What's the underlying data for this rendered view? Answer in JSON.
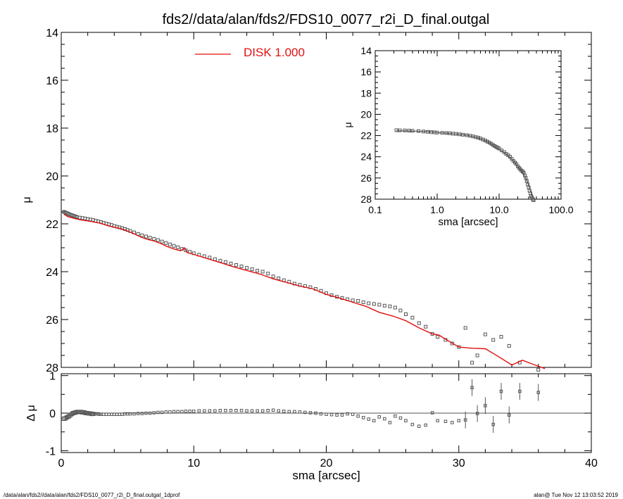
{
  "title": "fds2//data/alan/fds2/FDS10_0077_r2i_D_final.outgal",
  "footer_left": "/data/alan/fds2//data/alan/fds2/FDS10_0077_r2i_D_final.outgal_1dprof",
  "footer_right": "alan@  Tue Nov 12 13:03:52 2019",
  "colors": {
    "model": "#e01010",
    "data": "#555555",
    "axis": "#000000"
  },
  "chart_data": [
    {
      "id": "main",
      "type": "scatter",
      "xlabel": "",
      "ylabel": "μ",
      "xlim": [
        0,
        40
      ],
      "ylim": [
        28,
        14
      ],
      "yticks": [
        "14",
        "16",
        "18",
        "20",
        "22",
        "24",
        "26",
        "28"
      ],
      "legend": {
        "label": "DISK  1.000",
        "position": "top-left"
      },
      "series": [
        {
          "name": "DISK  1.000",
          "kind": "line",
          "x": [
            0.2,
            0.5,
            1,
            1.5,
            2,
            2.5,
            3,
            3.5,
            4,
            4.5,
            5,
            5.5,
            6,
            6.5,
            7,
            7.5,
            8,
            8.5,
            9,
            9.3,
            9.5,
            10,
            11,
            12,
            13,
            14,
            15,
            16,
            17,
            18,
            19,
            20,
            21,
            22,
            23,
            24,
            25,
            26,
            27,
            28,
            28.5,
            29,
            30,
            31,
            32,
            33,
            34,
            34.8,
            35.5,
            36.5
          ],
          "y": [
            21.6,
            21.7,
            21.78,
            21.84,
            21.88,
            21.93,
            21.98,
            22.08,
            22.14,
            22.2,
            22.3,
            22.42,
            22.55,
            22.65,
            22.72,
            22.82,
            22.95,
            23.05,
            23.13,
            23.0,
            23.2,
            23.28,
            23.45,
            23.62,
            23.8,
            23.95,
            24.1,
            24.3,
            24.45,
            24.6,
            24.72,
            24.95,
            25.1,
            25.28,
            25.45,
            25.7,
            25.85,
            26.05,
            26.35,
            26.6,
            26.65,
            26.82,
            27.15,
            27.2,
            27.22,
            27.55,
            27.9,
            27.7,
            27.85,
            28.05
          ]
        },
        {
          "name": "",
          "kind": "points",
          "x": [
            0.2,
            0.3,
            0.4,
            0.5,
            0.6,
            0.7,
            0.8,
            0.9,
            1.0,
            1.1,
            1.2,
            1.4,
            1.6,
            1.8,
            2.0,
            2.2,
            2.4,
            2.6,
            2.8,
            3.0,
            3.2,
            3.4,
            3.6,
            3.8,
            4.0,
            4.2,
            4.4,
            4.6,
            4.8,
            5.0,
            5.2,
            5.5,
            5.8,
            6.1,
            6.4,
            6.7,
            7.0,
            7.3,
            7.6,
            7.9,
            8.2,
            8.5,
            8.8,
            9.1,
            9.4,
            9.7,
            10.0,
            10.4,
            10.8,
            11.2,
            11.6,
            12.0,
            12.4,
            12.8,
            13.2,
            13.6,
            14.0,
            14.4,
            14.8,
            15.2,
            15.6,
            16.0,
            16.4,
            16.8,
            17.2,
            17.6,
            18.0,
            18.4,
            18.8,
            19.2,
            19.6,
            20.0,
            20.4,
            20.8,
            21.2,
            21.6,
            22.0,
            22.4,
            22.8,
            23.2,
            23.6,
            24.0,
            24.4,
            24.8,
            25.2,
            25.6,
            26.0,
            26.5,
            27.0,
            27.5,
            28.0,
            28.4,
            29.0,
            29.5,
            30.0,
            30.5,
            31.0,
            31.4,
            32.0,
            32.6,
            33.2,
            33.8,
            34.6,
            36.0
          ],
          "y": [
            21.5,
            21.52,
            21.55,
            21.57,
            21.6,
            21.62,
            21.64,
            21.66,
            21.68,
            21.7,
            21.72,
            21.74,
            21.76,
            21.78,
            21.8,
            21.82,
            21.84,
            21.87,
            21.9,
            21.93,
            21.96,
            21.99,
            22.02,
            22.05,
            22.09,
            22.12,
            22.15,
            22.18,
            22.22,
            22.26,
            22.3,
            22.36,
            22.42,
            22.48,
            22.53,
            22.58,
            22.63,
            22.68,
            22.74,
            22.8,
            22.86,
            22.92,
            22.98,
            23.05,
            23.11,
            23.17,
            23.23,
            23.29,
            23.35,
            23.41,
            23.48,
            23.54,
            23.6,
            23.66,
            23.72,
            23.78,
            23.84,
            23.9,
            23.96,
            24.0,
            24.08,
            24.2,
            24.28,
            24.36,
            24.42,
            24.5,
            24.55,
            24.6,
            24.65,
            24.72,
            24.8,
            24.9,
            24.98,
            25.05,
            25.1,
            25.15,
            25.2,
            25.22,
            25.28,
            25.32,
            25.35,
            25.38,
            25.42,
            25.45,
            25.5,
            25.62,
            25.78,
            25.92,
            26.15,
            26.3,
            26.6,
            26.72,
            26.85,
            27.0,
            27.15,
            26.35,
            27.8,
            27.5,
            26.62,
            26.85,
            26.72,
            27.1,
            27.8,
            28.1
          ]
        }
      ]
    },
    {
      "id": "inset",
      "type": "scatter",
      "xlabel": "sma [arcsec]",
      "ylabel": "μ",
      "xscale": "log",
      "xlim": [
        0.1,
        100
      ],
      "ylim": [
        28,
        14
      ],
      "xticks": [
        "0.1",
        "1.0",
        "10.0",
        "100.0"
      ],
      "yticks": [
        "14",
        "16",
        "18",
        "20",
        "22",
        "24",
        "26",
        "28"
      ],
      "series": [
        {
          "name": "",
          "kind": "line",
          "x": [
            0.22,
            0.3,
            0.5,
            0.8,
            1.0,
            1.5,
            2.0,
            3.0,
            4.0,
            5.0,
            6.0,
            7.0,
            8.0,
            9.0,
            10.0,
            12.0,
            14.0,
            16.0,
            18.0,
            20.0,
            22.0,
            24.0,
            26.0,
            28.0,
            30.0,
            32.0,
            34.0,
            36.0
          ],
          "y": [
            21.55,
            21.56,
            21.6,
            21.66,
            21.72,
            21.78,
            21.85,
            21.97,
            22.13,
            22.3,
            22.5,
            22.7,
            22.95,
            23.12,
            23.28,
            23.6,
            23.92,
            24.25,
            24.55,
            24.9,
            25.2,
            25.5,
            25.8,
            26.25,
            26.7,
            27.2,
            27.7,
            28.0
          ]
        },
        {
          "name": "",
          "kind": "points",
          "x": [
            0.22,
            0.25,
            0.3,
            0.35,
            0.4,
            0.5,
            0.6,
            0.7,
            0.8,
            0.9,
            1.0,
            1.2,
            1.4,
            1.6,
            1.8,
            2.0,
            2.3,
            2.6,
            3.0,
            3.4,
            3.8,
            4.2,
            4.6,
            5.0,
            5.5,
            6.0,
            6.5,
            7.0,
            7.5,
            8.0,
            8.5,
            9.0,
            9.5,
            10.0,
            11.0,
            12.0,
            13.0,
            14.0,
            15.0,
            16.0,
            17.0,
            18.0,
            19.0,
            20.0,
            21.0,
            22.0,
            23.0,
            24.0,
            25.0,
            26.0,
            27.0,
            28.0,
            29.0,
            30.0,
            31.0,
            32.0,
            33.0,
            34.0,
            35.0,
            36.0
          ],
          "y": [
            21.5,
            21.51,
            21.52,
            21.54,
            21.56,
            21.58,
            21.62,
            21.65,
            21.68,
            21.7,
            21.72,
            21.74,
            21.76,
            21.79,
            21.82,
            21.84,
            21.88,
            21.92,
            21.97,
            22.02,
            22.08,
            22.15,
            22.2,
            22.28,
            22.38,
            22.48,
            22.58,
            22.68,
            22.78,
            22.9,
            23.0,
            23.08,
            23.15,
            23.23,
            23.4,
            23.56,
            23.72,
            23.86,
            24.0,
            24.2,
            24.4,
            24.55,
            24.68,
            24.9,
            25.05,
            25.18,
            25.32,
            25.4,
            25.5,
            25.75,
            26.0,
            26.3,
            26.6,
            26.9,
            27.2,
            27.45,
            27.7,
            27.85,
            28.0,
            28.1
          ]
        }
      ]
    },
    {
      "id": "residual",
      "type": "scatter",
      "xlabel": "sma [arcsec]",
      "ylabel": "Δ μ",
      "xlim": [
        0,
        40
      ],
      "ylim": [
        -1.05,
        1.05
      ],
      "xticks": [
        "0",
        "10",
        "20",
        "30",
        "40"
      ],
      "yticks": [
        "1",
        "0",
        "-1"
      ],
      "series": [
        {
          "name": "",
          "kind": "points",
          "x": [
            0.2,
            0.3,
            0.4,
            0.5,
            0.6,
            0.7,
            0.8,
            0.9,
            1.0,
            1.1,
            1.2,
            1.3,
            1.4,
            1.5,
            1.6,
            1.7,
            1.8,
            1.9,
            2.0,
            2.1,
            2.2,
            2.3,
            2.4,
            2.5,
            2.6,
            2.7,
            2.8,
            2.9,
            3.0,
            3.2,
            3.4,
            3.6,
            3.8,
            4.0,
            4.2,
            4.4,
            4.6,
            4.8,
            5.0,
            5.2,
            5.5,
            5.8,
            6.1,
            6.4,
            6.7,
            7.0,
            7.3,
            7.6,
            7.9,
            8.2,
            8.5,
            8.8,
            9.1,
            9.4,
            9.7,
            10.0,
            10.4,
            10.8,
            11.2,
            11.6,
            12.0,
            12.4,
            12.8,
            13.2,
            13.6,
            14.0,
            14.4,
            14.8,
            15.2,
            15.6,
            16.0,
            16.4,
            16.8,
            17.2,
            17.6,
            18.0,
            18.4,
            18.8,
            19.2,
            19.6,
            20.0,
            20.4,
            20.8,
            21.2,
            21.6,
            22.0,
            22.4,
            22.8,
            23.2,
            23.6,
            24.0,
            24.4,
            24.8,
            25.2,
            25.6,
            26.0,
            26.5,
            27.0,
            27.5,
            28.0,
            28.4,
            29.0,
            29.5,
            30.0,
            30.5,
            31.0,
            31.4,
            32.0,
            32.6,
            33.2,
            33.8,
            34.6,
            36.0
          ],
          "y": [
            -0.15,
            -0.14,
            -0.12,
            -0.1,
            -0.08,
            -0.05,
            -0.02,
            0.0,
            0.01,
            0.02,
            0.03,
            0.03,
            0.03,
            0.03,
            0.02,
            0.02,
            0.01,
            0.0,
            0.0,
            -0.01,
            -0.01,
            -0.02,
            -0.02,
            -0.02,
            -0.02,
            -0.02,
            -0.02,
            -0.03,
            -0.03,
            -0.03,
            -0.03,
            -0.03,
            -0.03,
            -0.03,
            -0.03,
            -0.03,
            -0.03,
            -0.02,
            -0.02,
            -0.02,
            -0.02,
            -0.01,
            -0.01,
            0.0,
            0.0,
            0.01,
            0.02,
            0.02,
            0.03,
            0.03,
            0.04,
            0.04,
            0.04,
            0.05,
            0.05,
            0.05,
            0.06,
            0.06,
            0.06,
            0.06,
            0.07,
            0.07,
            0.07,
            0.07,
            0.07,
            0.06,
            0.06,
            0.06,
            0.06,
            0.07,
            0.08,
            0.06,
            0.05,
            0.04,
            0.04,
            0.03,
            0.02,
            0.01,
            0.0,
            -0.02,
            -0.03,
            -0.04,
            -0.05,
            -0.05,
            -0.02,
            -0.03,
            -0.08,
            -0.12,
            -0.16,
            -0.2,
            -0.1,
            -0.15,
            -0.25,
            -0.08,
            -0.13,
            -0.2,
            -0.3,
            -0.35,
            -0.32,
            0.01,
            -0.2,
            -0.22,
            -0.25,
            -0.2,
            -0.18,
            0.68,
            -0.01,
            0.2,
            -0.3,
            0.58,
            -0.05,
            0.58,
            0.55
          ]
        }
      ]
    }
  ]
}
